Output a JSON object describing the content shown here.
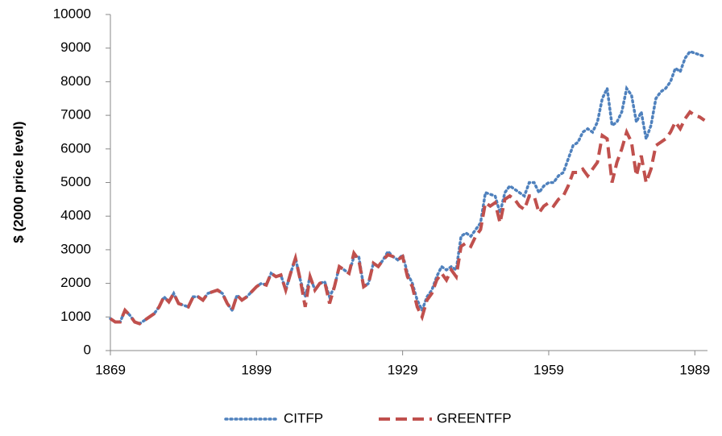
{
  "chart_data": {
    "type": "line",
    "y_label": "$ (2000 price level)",
    "x": [
      1869,
      1870,
      1871,
      1872,
      1873,
      1874,
      1875,
      1876,
      1877,
      1878,
      1879,
      1880,
      1881,
      1882,
      1883,
      1884,
      1885,
      1886,
      1887,
      1888,
      1889,
      1890,
      1891,
      1892,
      1893,
      1894,
      1895,
      1896,
      1897,
      1898,
      1899,
      1900,
      1901,
      1902,
      1903,
      1904,
      1905,
      1906,
      1907,
      1908,
      1909,
      1910,
      1911,
      1912,
      1913,
      1914,
      1915,
      1916,
      1917,
      1918,
      1919,
      1920,
      1921,
      1922,
      1923,
      1924,
      1925,
      1926,
      1927,
      1928,
      1929,
      1930,
      1931,
      1932,
      1933,
      1934,
      1935,
      1936,
      1937,
      1938,
      1939,
      1940,
      1941,
      1942,
      1943,
      1944,
      1945,
      1946,
      1947,
      1948,
      1949,
      1950,
      1951,
      1952,
      1953,
      1954,
      1955,
      1956,
      1957,
      1958,
      1959,
      1960,
      1961,
      1962,
      1963,
      1964,
      1965,
      1966,
      1967,
      1968,
      1969,
      1970,
      1971,
      1972,
      1973,
      1974,
      1975,
      1976,
      1977,
      1978,
      1979,
      1980,
      1981,
      1982,
      1983,
      1984,
      1985,
      1986,
      1987,
      1988,
      1989,
      1990,
      1991
    ],
    "series": [
      {
        "name": "CITFP",
        "color": "#4f81bd",
        "dash": "dotted",
        "values": [
          950,
          850,
          850,
          1200,
          1050,
          850,
          800,
          900,
          1000,
          1100,
          1300,
          1600,
          1450,
          1700,
          1400,
          1350,
          1300,
          1600,
          1600,
          1500,
          1700,
          1750,
          1800,
          1700,
          1400,
          1200,
          1650,
          1500,
          1600,
          1750,
          1900,
          2000,
          1950,
          2300,
          2200,
          2250,
          1800,
          2300,
          2750,
          2100,
          1600,
          2200,
          1800,
          2000,
          2050,
          1600,
          1900,
          2500,
          2400,
          2300,
          2800,
          2800,
          1900,
          2000,
          2600,
          2500,
          2700,
          2950,
          2800,
          2700,
          2850,
          2300,
          2000,
          1500,
          1200,
          1600,
          1800,
          2200,
          2500,
          2400,
          2500,
          2400,
          3400,
          3500,
          3400,
          3600,
          3800,
          4700,
          4650,
          4600,
          4100,
          4700,
          4900,
          4800,
          4700,
          4600,
          5000,
          5000,
          4700,
          4900,
          5000,
          5000,
          5200,
          5300,
          5700,
          6100,
          6200,
          6500,
          6600,
          6500,
          6800,
          7500,
          7800,
          6700,
          6800,
          7100,
          7800,
          7600,
          6800,
          7100,
          6300,
          6700,
          7500,
          7700,
          7800,
          8000,
          8400,
          8300,
          8700,
          8900,
          8850,
          8800,
          8750
        ]
      },
      {
        "name": "GREENTFP",
        "color": "#c0504d",
        "dash": "dashed",
        "values": [
          950,
          850,
          850,
          1200,
          1050,
          850,
          800,
          900,
          1000,
          1100,
          1300,
          1600,
          1450,
          1700,
          1400,
          1350,
          1300,
          1600,
          1600,
          1500,
          1700,
          1750,
          1800,
          1700,
          1400,
          1200,
          1650,
          1500,
          1600,
          1750,
          1900,
          2000,
          1950,
          2300,
          2200,
          2250,
          1800,
          2300,
          2750,
          2100,
          1300,
          2200,
          1800,
          2000,
          2050,
          1400,
          1900,
          2500,
          2400,
          2300,
          2900,
          2700,
          1900,
          2000,
          2600,
          2500,
          2700,
          2850,
          2800,
          2700,
          2800,
          2200,
          1900,
          1300,
          1000,
          1500,
          1700,
          2100,
          2300,
          2100,
          2400,
          2200,
          3100,
          3200,
          3100,
          3400,
          3600,
          4400,
          4300,
          4400,
          3800,
          4500,
          4600,
          4500,
          4300,
          4200,
          4600,
          4600,
          4100,
          4300,
          4400,
          4300,
          4500,
          4600,
          4900,
          5300,
          5300,
          5400,
          5200,
          5400,
          5600,
          6400,
          6300,
          5000,
          5600,
          6000,
          6500,
          6200,
          5200,
          5800,
          5000,
          5400,
          6100,
          6200,
          6300,
          6500,
          6800,
          6600,
          6900,
          7100,
          7000,
          6950,
          6850
        ]
      }
    ],
    "xlim": [
      1869,
      1991.6
    ],
    "xticks": [
      1869,
      1899,
      1929,
      1959,
      1989
    ],
    "ylim": [
      0,
      10000
    ],
    "yticks": [
      0,
      1000,
      2000,
      3000,
      4000,
      5000,
      6000,
      7000,
      8000,
      9000,
      10000
    ],
    "grid": false,
    "legend": "bottom"
  }
}
